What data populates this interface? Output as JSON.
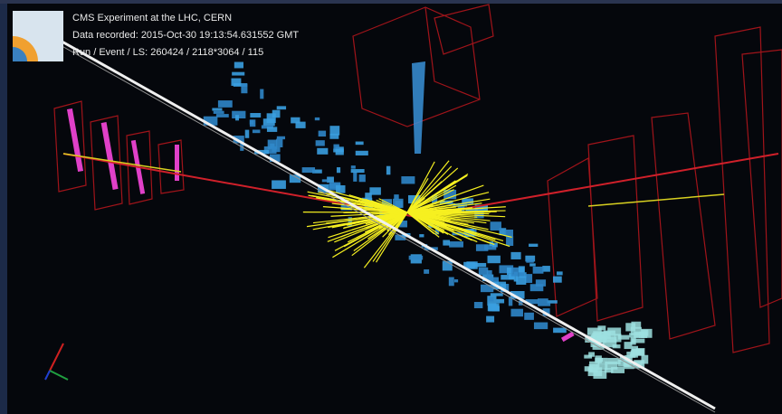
{
  "header": {
    "title": "CMS Experiment at the LHC, CERN",
    "date": "Data recorded: 2015-Oct-30 19:13:54.631552 GMT",
    "run": "Run / Event / LS: 260424 / 2118*3064 / 115"
  }
}
